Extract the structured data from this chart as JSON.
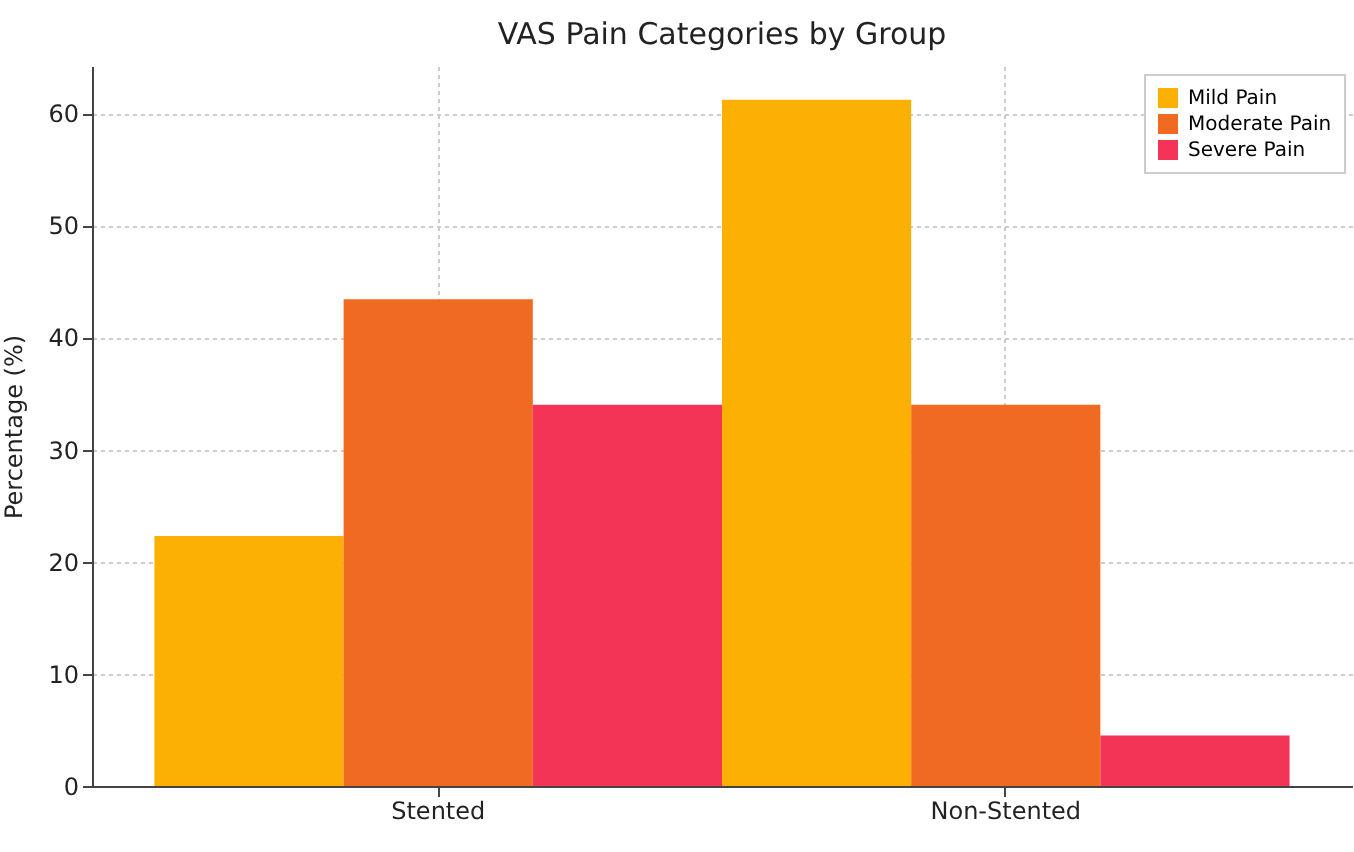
{
  "chart_data": {
    "type": "bar",
    "title": "VAS Pain Categories by Group",
    "ylabel": "Percentage (%)",
    "categories": [
      "Stented",
      "Non-Stented"
    ],
    "series": [
      {
        "name": "Mild Pain",
        "color": "#fbb003",
        "values": [
          22.3,
          61.2
        ]
      },
      {
        "name": "Moderate Pain",
        "color": "#f06a22",
        "values": [
          43.4,
          34.0
        ]
      },
      {
        "name": "Severe Pain",
        "color": "#f33456",
        "values": [
          34.0,
          4.5
        ]
      }
    ],
    "ylim": [
      0,
      64.2
    ],
    "yticks": [
      0,
      10,
      20,
      30,
      40,
      50,
      60
    ],
    "grid": true,
    "legend": "top right"
  }
}
